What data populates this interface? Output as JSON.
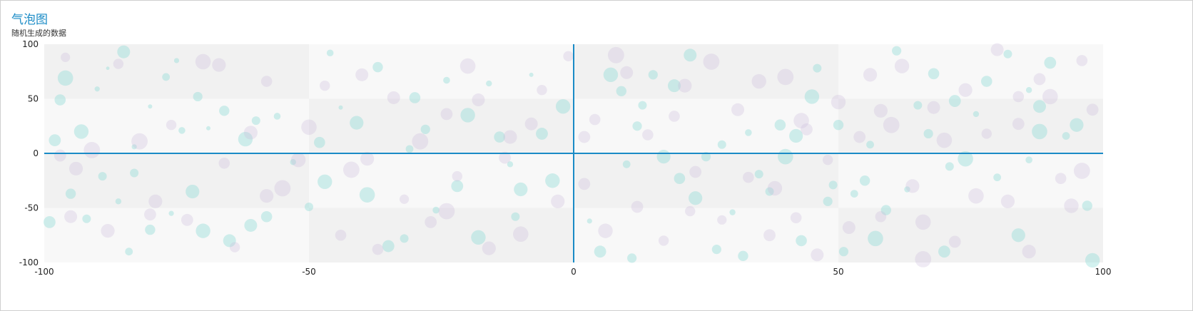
{
  "chart_data": {
    "type": "scatter",
    "subtype": "bubble",
    "title": "气泡图",
    "subtitle": "随机生成的数据",
    "xlim": [
      -100,
      100
    ],
    "ylim": [
      -100,
      100
    ],
    "x_ticks": [
      "-100",
      "-50",
      "0",
      "50",
      "100"
    ],
    "y_ticks": [
      "100",
      "50",
      "0",
      "-50",
      "-100"
    ],
    "grid": "alternating bands",
    "legend": "none",
    "colors": {
      "axis_line": "#1a8bc6",
      "bubble_a": "#7ed6d0",
      "bubble_b": "#c9b8dc",
      "band_light": "#f8f8f8",
      "band_dark": "#f1f1f1",
      "title": "#1a8bc6"
    },
    "series": [
      {
        "note_visible": "",
        "points": [
          [
            -96,
            69,
            1.8
          ],
          [
            -93,
            20,
            1.7
          ],
          [
            -90,
            59,
            0.6
          ],
          [
            -88,
            78,
            0.4
          ],
          [
            -85,
            93,
            1.5
          ],
          [
            -83,
            6,
            0.6
          ],
          [
            -80,
            43,
            0.5
          ],
          [
            -77,
            70,
            0.9
          ],
          [
            -74,
            21,
            0.8
          ],
          [
            -71,
            52,
            1.1
          ],
          [
            -95,
            -37,
            1.2
          ],
          [
            -92,
            -60,
            1.0
          ],
          [
            -89,
            -21,
            1.0
          ],
          [
            -86,
            -44,
            0.7
          ],
          [
            -84,
            -90,
            0.9
          ],
          [
            -80,
            -70,
            1.2
          ],
          [
            -76,
            -55,
            0.6
          ],
          [
            -72,
            -35,
            1.6
          ],
          [
            -70,
            -71,
            1.7
          ],
          [
            -65,
            -80,
            1.5
          ],
          [
            -69,
            23,
            0.5
          ],
          [
            -66,
            39,
            1.2
          ],
          [
            -62,
            13,
            1.7
          ],
          [
            -58,
            -58,
            1.3
          ],
          [
            -56,
            34,
            0.8
          ],
          [
            -53,
            -8,
            0.7
          ],
          [
            -50,
            -49,
            1.0
          ],
          [
            -48,
            10,
            1.3
          ],
          [
            -46,
            92,
            0.8
          ],
          [
            -44,
            42,
            0.5
          ],
          [
            -41,
            28,
            1.6
          ],
          [
            -39,
            -38,
            1.8
          ],
          [
            -37,
            79,
            1.2
          ],
          [
            -35,
            -85,
            1.4
          ],
          [
            -32,
            -78,
            1.0
          ],
          [
            -30,
            51,
            1.3
          ],
          [
            -28,
            22,
            1.1
          ],
          [
            -26,
            -52,
            0.8
          ],
          [
            -24,
            67,
            0.8
          ],
          [
            -22,
            -30,
            1.4
          ],
          [
            -20,
            35,
            1.7
          ],
          [
            -18,
            -77,
            1.7
          ],
          [
            -16,
            64,
            0.7
          ],
          [
            -14,
            15,
            1.3
          ],
          [
            -12,
            -10,
            0.7
          ],
          [
            -10,
            -33,
            1.6
          ],
          [
            -8,
            72,
            0.5
          ],
          [
            -6,
            18,
            1.4
          ],
          [
            -4,
            -25,
            1.7
          ],
          [
            -2,
            43,
            1.7
          ],
          [
            3,
            -62,
            0.6
          ],
          [
            5,
            -90,
            1.4
          ],
          [
            7,
            72,
            1.7
          ],
          [
            9,
            57,
            1.2
          ],
          [
            11,
            -96,
            1.1
          ],
          [
            12,
            25,
            1.1
          ],
          [
            15,
            72,
            1.1
          ],
          [
            17,
            -3,
            1.6
          ],
          [
            19,
            62,
            1.5
          ],
          [
            20,
            -23,
            1.3
          ],
          [
            22,
            90,
            1.5
          ],
          [
            23,
            -41,
            1.6
          ],
          [
            25,
            -3,
            1.1
          ],
          [
            27,
            -88,
            1.1
          ],
          [
            28,
            8,
            1.0
          ],
          [
            30,
            -54,
            0.7
          ],
          [
            32,
            -94,
            1.2
          ],
          [
            35,
            -19,
            1.0
          ],
          [
            37,
            -35,
            1.0
          ],
          [
            39,
            26,
            1.3
          ],
          [
            40,
            -3,
            1.8
          ],
          [
            42,
            16,
            1.6
          ],
          [
            43,
            -80,
            1.3
          ],
          [
            45,
            52,
            1.7
          ],
          [
            46,
            78,
            1.0
          ],
          [
            48,
            -44,
            1.1
          ],
          [
            49,
            -29,
            1.0
          ],
          [
            51,
            -90,
            1.1
          ],
          [
            53,
            -37,
            0.9
          ],
          [
            55,
            -25,
            1.2
          ],
          [
            57,
            -78,
            1.8
          ],
          [
            59,
            -52,
            1.2
          ],
          [
            61,
            94,
            1.1
          ],
          [
            63,
            -33,
            0.7
          ],
          [
            65,
            44,
            1.0
          ],
          [
            67,
            18,
            1.1
          ],
          [
            68,
            73,
            1.3
          ],
          [
            70,
            -90,
            1.4
          ],
          [
            72,
            48,
            1.4
          ],
          [
            74,
            -5,
            1.8
          ],
          [
            76,
            36,
            0.7
          ],
          [
            78,
            66,
            1.3
          ],
          [
            80,
            -22,
            0.9
          ],
          [
            82,
            91,
            1.0
          ],
          [
            84,
            -75,
            1.6
          ],
          [
            86,
            58,
            0.7
          ],
          [
            88,
            20,
            1.8
          ],
          [
            90,
            83,
            1.4
          ],
          [
            93,
            16,
            0.9
          ],
          [
            95,
            26,
            1.6
          ],
          [
            97,
            -48,
            1.2
          ],
          [
            98,
            -98,
            1.7
          ],
          [
            -98,
            12,
            1.4
          ],
          [
            -97,
            49,
            1.3
          ],
          [
            -99,
            -63,
            1.4
          ],
          [
            -83,
            -18,
            1.0
          ],
          [
            -61,
            -66,
            1.5
          ],
          [
            -47,
            -26,
            1.7
          ],
          [
            -31,
            4,
            0.9
          ],
          [
            13,
            44,
            1.0
          ],
          [
            33,
            19,
            0.8
          ],
          [
            56,
            8,
            0.9
          ],
          [
            71,
            -12,
            1.0
          ],
          [
            86,
            -6,
            0.8
          ],
          [
            -60,
            30,
            1.0
          ],
          [
            -11,
            -58,
            1.0
          ],
          [
            10,
            -10,
            0.9
          ],
          [
            50,
            26,
            1.2
          ],
          [
            -75,
            85,
            0.6
          ],
          [
            88,
            43,
            1.5
          ]
        ]
      },
      {
        "note_visible": "",
        "points": [
          [
            -97,
            -2,
            1.4
          ],
          [
            -94,
            -14,
            1.6
          ],
          [
            -91,
            3,
            1.9
          ],
          [
            -88,
            -71,
            1.6
          ],
          [
            -86,
            82,
            1.2
          ],
          [
            -82,
            11,
            1.9
          ],
          [
            -79,
            -44,
            1.6
          ],
          [
            -76,
            26,
            1.2
          ],
          [
            -73,
            -61,
            1.4
          ],
          [
            -70,
            84,
            1.8
          ],
          [
            -67,
            81,
            1.6
          ],
          [
            -64,
            -86,
            1.2
          ],
          [
            -61,
            19,
            1.6
          ],
          [
            -58,
            66,
            1.3
          ],
          [
            -55,
            -32,
            1.9
          ],
          [
            -52,
            -6,
            1.7
          ],
          [
            -50,
            24,
            1.8
          ],
          [
            -47,
            62,
            1.2
          ],
          [
            -44,
            -75,
            1.3
          ],
          [
            -42,
            -15,
            1.9
          ],
          [
            -40,
            72,
            1.5
          ],
          [
            -37,
            -88,
            1.3
          ],
          [
            -34,
            51,
            1.5
          ],
          [
            -32,
            -42,
            1.1
          ],
          [
            -29,
            11,
            1.9
          ],
          [
            -27,
            -63,
            1.4
          ],
          [
            -24,
            36,
            1.4
          ],
          [
            -22,
            -21,
            1.2
          ],
          [
            -20,
            80,
            1.8
          ],
          [
            -18,
            49,
            1.5
          ],
          [
            -16,
            -87,
            1.6
          ],
          [
            -13,
            -4,
            1.4
          ],
          [
            -10,
            -74,
            1.8
          ],
          [
            -8,
            27,
            1.5
          ],
          [
            -6,
            58,
            1.2
          ],
          [
            -3,
            -44,
            1.6
          ],
          [
            -1,
            89,
            1.2
          ],
          [
            2,
            -28,
            1.4
          ],
          [
            4,
            31,
            1.3
          ],
          [
            6,
            -71,
            1.7
          ],
          [
            8,
            90,
            1.9
          ],
          [
            10,
            74,
            1.5
          ],
          [
            12,
            -49,
            1.4
          ],
          [
            14,
            17,
            1.3
          ],
          [
            17,
            -80,
            1.2
          ],
          [
            19,
            34,
            1.3
          ],
          [
            21,
            62,
            1.6
          ],
          [
            23,
            -17,
            1.4
          ],
          [
            26,
            84,
            1.9
          ],
          [
            28,
            -61,
            1.1
          ],
          [
            31,
            40,
            1.5
          ],
          [
            33,
            -22,
            1.3
          ],
          [
            35,
            66,
            1.7
          ],
          [
            37,
            -75,
            1.4
          ],
          [
            38,
            -32,
            1.7
          ],
          [
            40,
            70,
            1.9
          ],
          [
            42,
            -59,
            1.3
          ],
          [
            44,
            22,
            1.4
          ],
          [
            46,
            -93,
            1.5
          ],
          [
            48,
            -6,
            1.2
          ],
          [
            50,
            47,
            1.7
          ],
          [
            52,
            -68,
            1.5
          ],
          [
            54,
            15,
            1.4
          ],
          [
            56,
            72,
            1.6
          ],
          [
            58,
            -58,
            1.3
          ],
          [
            60,
            26,
            1.9
          ],
          [
            62,
            80,
            1.7
          ],
          [
            64,
            -30,
            1.6
          ],
          [
            66,
            -63,
            1.8
          ],
          [
            68,
            42,
            1.5
          ],
          [
            70,
            12,
            1.8
          ],
          [
            72,
            -81,
            1.4
          ],
          [
            74,
            58,
            1.6
          ],
          [
            76,
            -39,
            1.8
          ],
          [
            78,
            18,
            1.2
          ],
          [
            80,
            95,
            1.5
          ],
          [
            82,
            -44,
            1.6
          ],
          [
            84,
            27,
            1.4
          ],
          [
            86,
            -90,
            1.6
          ],
          [
            88,
            68,
            1.4
          ],
          [
            90,
            52,
            1.8
          ],
          [
            92,
            -23,
            1.3
          ],
          [
            94,
            -48,
            1.7
          ],
          [
            96,
            -16,
            1.9
          ],
          [
            98,
            40,
            1.4
          ],
          [
            -96,
            88,
            1.1
          ],
          [
            -95,
            -58,
            1.5
          ],
          [
            -80,
            -56,
            1.4
          ],
          [
            -66,
            -9,
            1.3
          ],
          [
            -39,
            -5,
            1.6
          ],
          [
            -24,
            -53,
            1.9
          ],
          [
            -12,
            15,
            1.6
          ],
          [
            2,
            15,
            1.4
          ],
          [
            22,
            -53,
            1.2
          ],
          [
            43,
            30,
            1.8
          ],
          [
            58,
            39,
            1.6
          ],
          [
            66,
            -97,
            1.9
          ],
          [
            84,
            52,
            1.3
          ],
          [
            96,
            85,
            1.3
          ],
          [
            -58,
            -39,
            1.6
          ]
        ]
      }
    ]
  }
}
